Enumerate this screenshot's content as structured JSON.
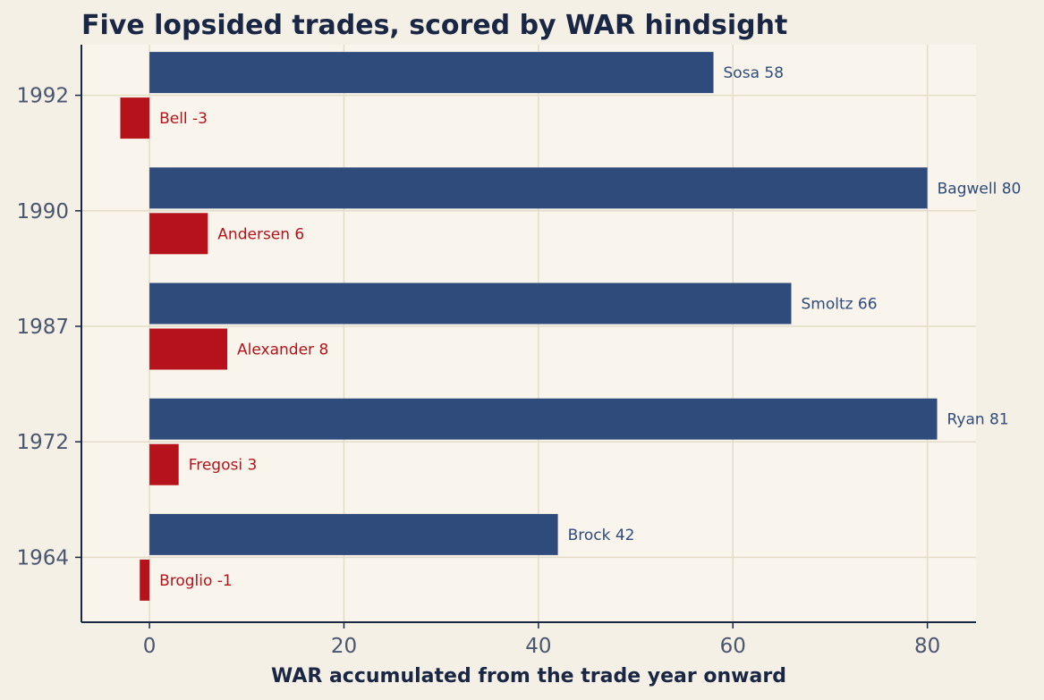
{
  "chart_data": {
    "type": "bar",
    "orientation": "horizontal",
    "title": "Five lopsided trades, scored by WAR hindsight",
    "xlabel": "WAR accumulated from the trade year onward",
    "ylabel": "",
    "xlim": [
      -7,
      85
    ],
    "xticks": [
      0,
      20,
      40,
      60,
      80
    ],
    "grid": true,
    "legend": "none",
    "categories": [
      "1964",
      "1972",
      "1987",
      "1990",
      "1992"
    ],
    "series": [
      {
        "color": "#2e4b7c",
        "values": [
          42,
          81,
          66,
          80,
          58
        ],
        "labels": [
          "Brock  42",
          "Ryan  81",
          "Smoltz  66",
          "Bagwell  80",
          "Sosa  58"
        ]
      },
      {
        "color": "#b5121b",
        "values": [
          -1,
          3,
          8,
          6,
          -3
        ],
        "labels": [
          "Broglio  -1",
          "Fregosi  3",
          "Alexander  8",
          "Andersen  6",
          "Bell  -3"
        ]
      }
    ]
  }
}
